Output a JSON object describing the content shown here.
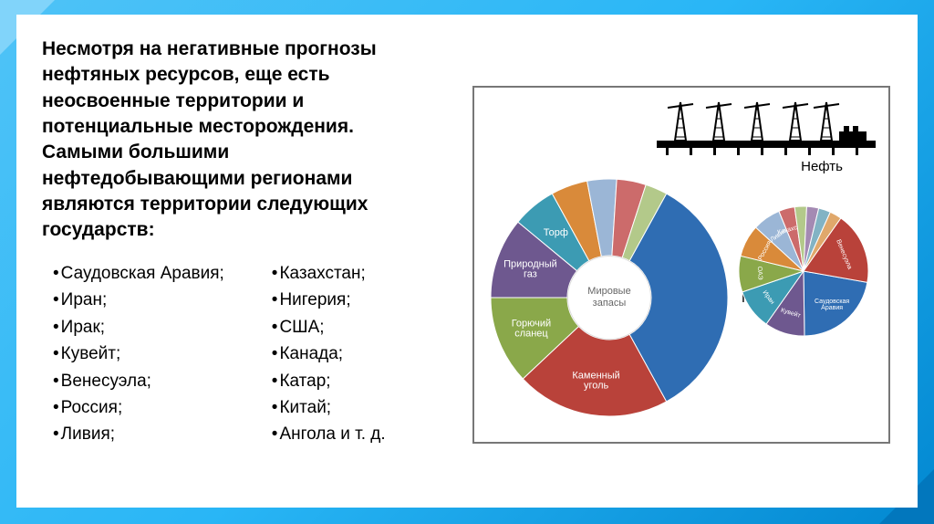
{
  "heading": "Несмотря на негативные прогнозы нефтяных ресурсов, еще есть неосвоенные территории и потенциальные месторождения. Самыми большими нефтедобывающими регионами являются территории следующих государств:",
  "list_left": [
    "Саудовская Аравия;",
    "Иран;",
    "Ирак;",
    "Кувейт;",
    "Венесуэла;",
    "Россия;",
    "Ливия;"
  ],
  "list_right": [
    "Казахстан;",
    "Нигерия;",
    "США;",
    "Канада;",
    "Катар;",
    "Китай;",
    "Ангола и т. д."
  ],
  "rig_label": "Нефть",
  "big_pie": {
    "type": "donut",
    "center_label_top": "Мировые",
    "center_label_bottom": "запасы",
    "outer_label": "Нефть",
    "radius": 130,
    "inner_radius": 46,
    "background": "#ffffff",
    "segments": [
      {
        "label": "Нефть",
        "value": 34,
        "color": "#2f6db3",
        "label_color": "#222",
        "external": true
      },
      {
        "label": "Каменный уголь",
        "value": 21,
        "color": "#b9423a",
        "label_color": "#fff"
      },
      {
        "label": "Горючий сланец",
        "value": 12,
        "color": "#8aa84a",
        "label_color": "#fff"
      },
      {
        "label": "Природный газ",
        "value": 11,
        "color": "#6e588f",
        "label_color": "#fff"
      },
      {
        "label": "Торф",
        "value": 6,
        "color": "#3c9bb3",
        "label_color": "#fff"
      },
      {
        "label": "",
        "value": 5,
        "color": "#d98a3a",
        "label_color": "#fff"
      },
      {
        "label": "",
        "value": 4,
        "color": "#9bb6d6",
        "label_color": "#fff"
      },
      {
        "label": "",
        "value": 4,
        "color": "#cc6b6b",
        "label_color": "#fff"
      },
      {
        "label": "",
        "value": 3,
        "color": "#b3c98a",
        "label_color": "#fff"
      }
    ]
  },
  "small_pie": {
    "type": "pie",
    "radius": 71,
    "background": "#ffffff",
    "segments": [
      {
        "label": "Саудовская Аравия",
        "value": 22,
        "color": "#2f6db3"
      },
      {
        "label": "Кувейт",
        "value": 10,
        "color": "#6e588f"
      },
      {
        "label": "Иран",
        "value": 10,
        "color": "#3c9bb3"
      },
      {
        "label": "ОАЭ",
        "value": 9,
        "color": "#8aa84a"
      },
      {
        "label": "Россия",
        "value": 8,
        "color": "#d98a3a"
      },
      {
        "label": "Ливия",
        "value": 7,
        "color": "#9bb6d6"
      },
      {
        "label": "Казахстан",
        "value": 4,
        "color": "#cc6b6b"
      },
      {
        "label": "",
        "value": 3,
        "color": "#b3c98a"
      },
      {
        "label": "",
        "value": 3,
        "color": "#a48ab3"
      },
      {
        "label": "",
        "value": 3,
        "color": "#82b3c4"
      },
      {
        "label": "",
        "value": 3,
        "color": "#e0a86b"
      },
      {
        "label": "Венесуэла",
        "value": 18,
        "color": "#b9423a"
      }
    ]
  },
  "rig_svg": {
    "platform_color": "#000000",
    "background": "#ffffff"
  }
}
